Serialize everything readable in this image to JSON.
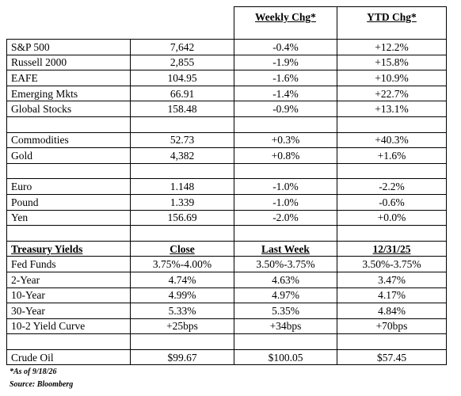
{
  "table": {
    "header": [
      "Weekly Chg*",
      "YTD Chg*"
    ],
    "groups": [
      {
        "rows": [
          [
            "S&P 500",
            "7,642",
            "-0.4%",
            "+12.2%"
          ],
          [
            "Russell 2000",
            "2,855",
            "-1.9%",
            "+15.8%"
          ],
          [
            "EAFE",
            "104.95",
            "-1.6%",
            "+10.9%"
          ],
          [
            "Emerging Mkts",
            "66.91",
            "-1.4%",
            "+22.7%"
          ],
          [
            "Global Stocks",
            "158.48",
            "-0.9%",
            "+13.1%"
          ]
        ]
      },
      {
        "rows": [
          [
            "Commodities",
            "52.73",
            "+0.3%",
            "+40.3%"
          ],
          [
            "Gold",
            "4,382",
            "+0.8%",
            "+1.6%"
          ]
        ]
      },
      {
        "rows": [
          [
            "Euro",
            "1.148",
            "-1.0%",
            "-2.2%"
          ],
          [
            "Pound",
            "1.339",
            "-1.0%",
            "-0.6%"
          ],
          [
            "Yen",
            "156.69",
            "-2.0%",
            "+0.0%"
          ]
        ]
      },
      {
        "header": [
          "Treasury Yields",
          "Close",
          "Last Week",
          "12/31/25"
        ],
        "rows": [
          [
            "Fed Funds",
            "3.75%-4.00%",
            "3.50%-3.75%",
            "3.50%-3.75%"
          ],
          [
            "2-Year",
            "4.74%",
            "4.63%",
            "3.47%"
          ],
          [
            "10-Year",
            "4.99%",
            "4.97%",
            "4.17%"
          ],
          [
            "30-Year",
            "5.33%",
            "5.35%",
            "4.84%"
          ],
          [
            "10-2 Yield Curve",
            "+25bps",
            "+34bps",
            "+70bps"
          ]
        ]
      },
      {
        "rows": [
          [
            "Crude Oil",
            "$99.67",
            "$100.05",
            "$57.45"
          ]
        ]
      }
    ]
  },
  "footnotes": [
    "*As of 9/18/26",
    "Source: Bloomberg"
  ]
}
